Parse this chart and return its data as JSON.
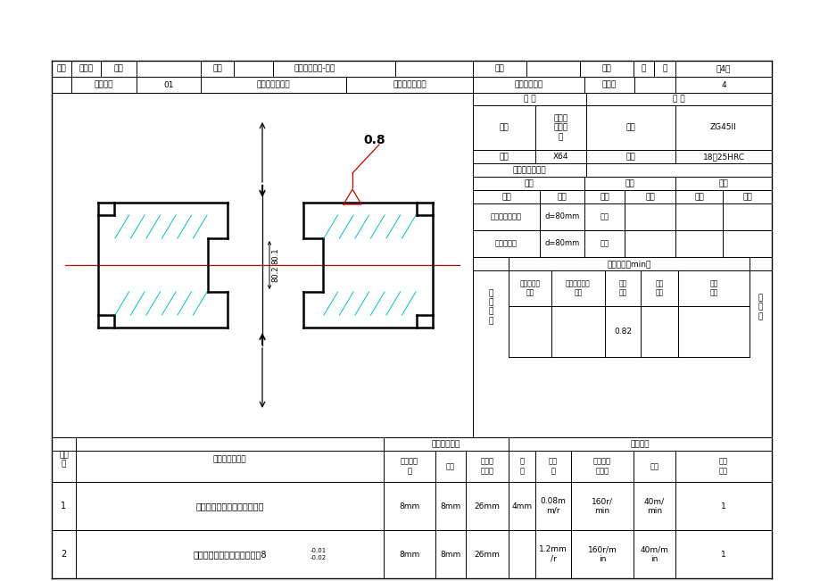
{
  "title_row": [
    "编制",
    "大勝杰",
    "设计",
    "",
    "审核",
    "",
    "机械加工工序-椭锥",
    "",
    "描图",
    "",
    "校对",
    "共",
    "张",
    "第4张"
  ],
  "subtitle_row": [
    "",
    "产品代号",
    "01",
    "零（部）件代号",
    "",
    "零（部）件名称",
    "变速换挡拨叉",
    "工序号",
    "4"
  ],
  "device_name_value": "卧式双\n铣面铣\n床",
  "material_name_value": "ZG45II",
  "device_model_value": "X64",
  "hardness_value": "18～25HRC",
  "tool_rows": [
    [
      "高速套式面铣刀",
      "d=80mm",
      "游标"
    ],
    [
      "三面刃铣刀",
      "d=80mm",
      "卡尺"
    ]
  ],
  "basic_value": "0.82",
  "op_rows": [
    {
      "no": "1",
      "content": "粗铣变速换挡拨叉叉脚两端面",
      "width": "8mm",
      "length": "8mm",
      "calc_length": "26mm",
      "cut_depth": "4mm",
      "feed": "0.08m\nm/r",
      "speed": "160r/\nmin",
      "vel": "40m/\nmin",
      "passes": "1"
    },
    {
      "no": "2",
      "content": "精铣变速换挡拨叉叉脚两端面8",
      "content_sup": "-0.01",
      "content_sub": "-0.02",
      "width": "8mm",
      "length": "8mm",
      "calc_length": "26mm",
      "cut_depth": "",
      "feed": "1.2mm\n/r",
      "speed": "160r/m\nin",
      "vel": "40m/m\nin",
      "passes": "1"
    }
  ],
  "bg_color": "#ffffff",
  "line_color": "#000000",
  "cyan_line_color": "#00bfbf",
  "font_size": 7.5
}
